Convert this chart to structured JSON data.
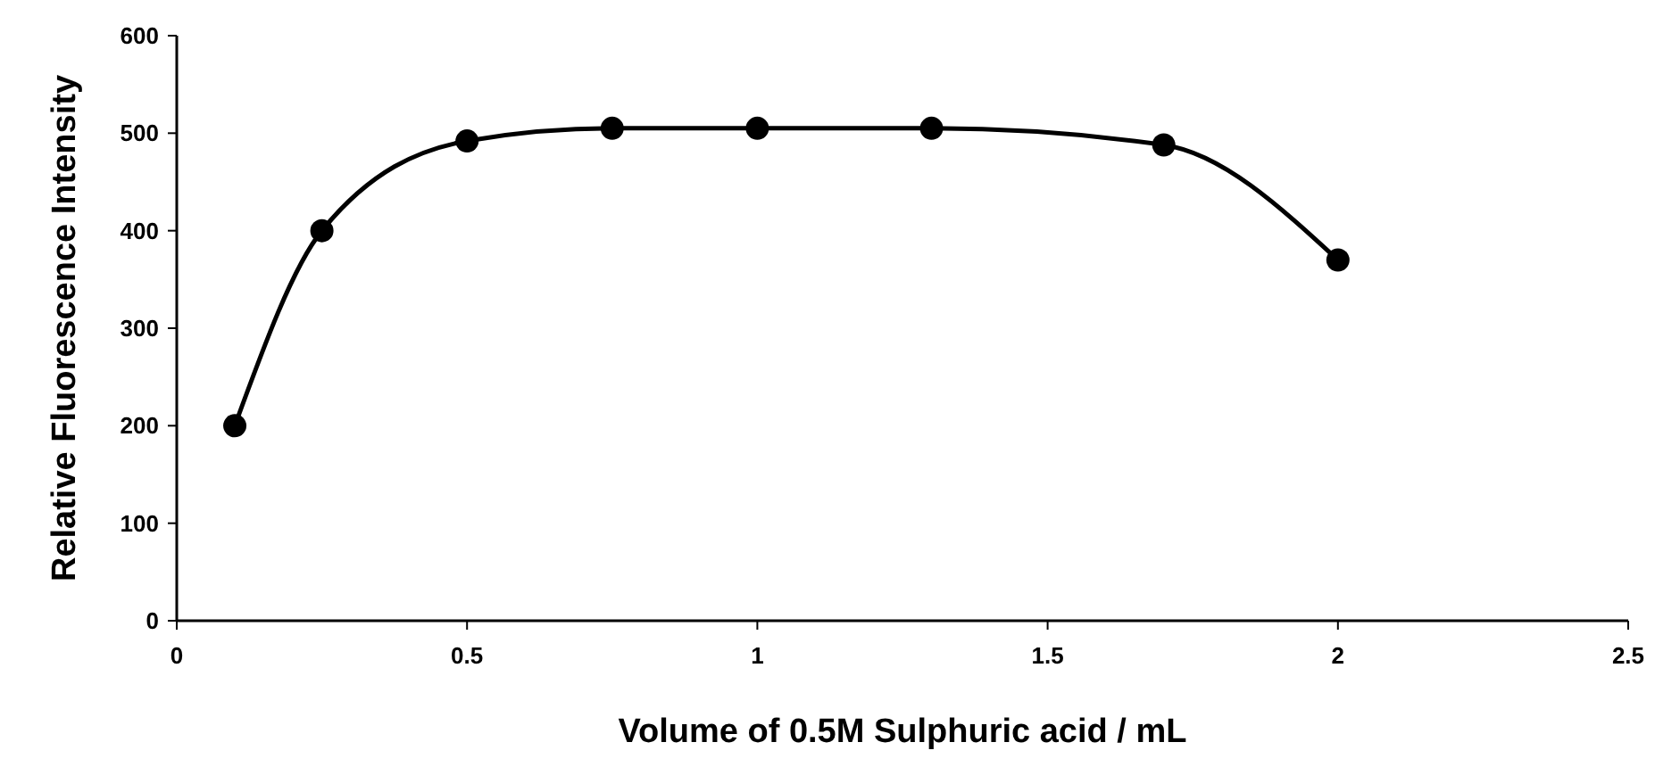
{
  "chart_data": {
    "type": "line",
    "xlabel": "Volume of 0.5M Sulphuric acid / mL",
    "ylabel": "Relative Fluorescence Intensity",
    "x": [
      0.1,
      0.25,
      0.5,
      0.75,
      1,
      1.3,
      1.7,
      2
    ],
    "series": [
      {
        "color": "#000000",
        "values": [
          200,
          400,
          492,
          505,
          505,
          505,
          488,
          370
        ]
      }
    ],
    "xlim": [
      0,
      2.5
    ],
    "xticks": [
      0,
      0.5,
      1,
      1.5,
      2,
      2.5
    ],
    "ylim": [
      0,
      600
    ],
    "yticks": [
      0,
      100,
      200,
      300,
      400,
      500,
      600
    ],
    "grid": false,
    "marker": "circle",
    "line_style": "solid"
  }
}
